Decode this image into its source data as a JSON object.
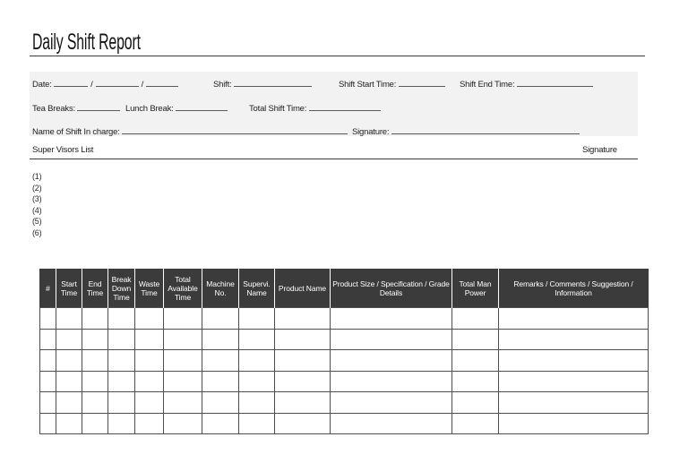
{
  "page": {
    "title": "Daily Shift Report"
  },
  "colors": {
    "band_bg": "#f2f2f2",
    "table_header_bg": "#3b3b3b",
    "table_header_text": "#ffffff",
    "rule_line": "#3c3c3c"
  },
  "fields": {
    "date_label": "Date:",
    "date_separator": "/",
    "shift_label": "Shift:",
    "shift_start_label": "Shift Start Time:",
    "shift_end_label": "Shift End Time:",
    "tea_breaks_label": "Tea Breaks:",
    "lunch_break_label": "Lunch Break:",
    "total_shift_time_label": "Total Shift Time:",
    "name_incharge_label": "Name of Shift In charge:",
    "signature_label": "Signature:"
  },
  "supervisors": {
    "heading": "Super Visors List",
    "signature_heading": "Signature",
    "items": [
      "(1)",
      "(2)",
      "(3)",
      "(4)",
      "(5)",
      "(6)"
    ]
  },
  "table": {
    "headers": [
      "#",
      "Start Time",
      "End Time",
      "Break Down Time",
      "Waste Time",
      "Total Available Time",
      "Machine No.",
      "Supervi. Name",
      "Product Name",
      "Product Size / Specification / Grade Details",
      "Total Man Power",
      "Remarks / Comments / Suggestion / Information"
    ],
    "row_count": 6
  }
}
